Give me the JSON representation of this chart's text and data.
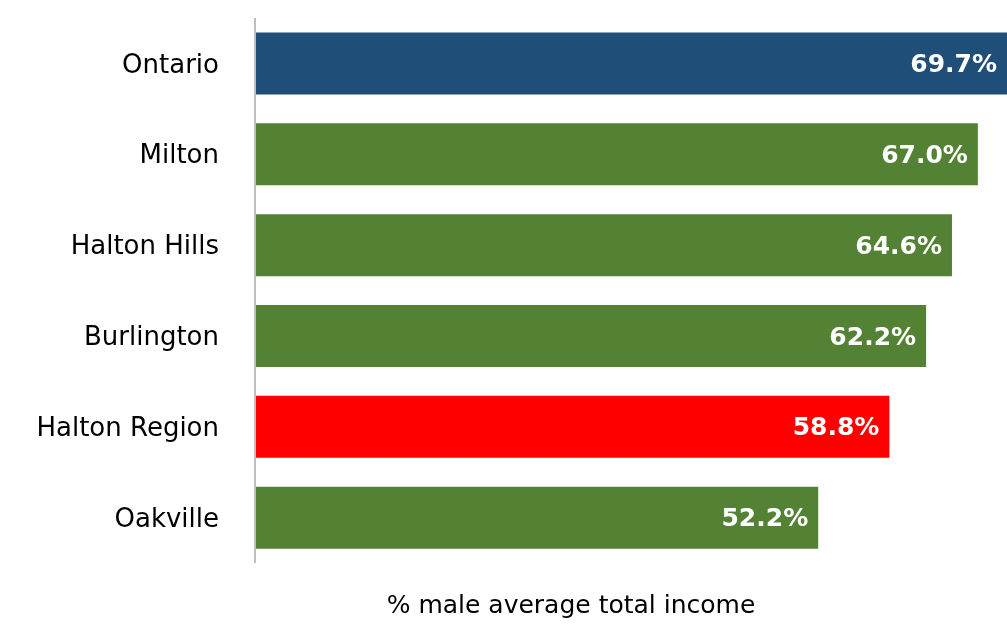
{
  "chart_data": {
    "type": "bar",
    "orientation": "horizontal",
    "xlabel": "% male average total income",
    "categories": [
      "Ontario",
      "Milton",
      "Halton Hills",
      "Burlington",
      "Halton Region",
      "Oakville"
    ],
    "values": [
      69.7,
      67.0,
      64.6,
      62.2,
      58.8,
      52.2
    ],
    "colors": [
      "#1f4e79",
      "#548235",
      "#548235",
      "#548235",
      "#ff0000",
      "#548235"
    ],
    "value_labels": [
      "69.7%",
      "67.0%",
      "64.6%",
      "62.2%",
      "58.8%",
      "52.2%"
    ],
    "xlim": [
      0,
      69.7
    ],
    "tick_labels": "y"
  }
}
